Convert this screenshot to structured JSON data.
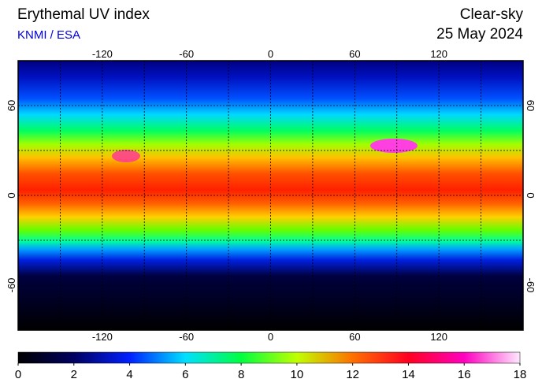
{
  "header": {
    "title": "Erythemal UV index",
    "source": "KNMI / ESA",
    "mode": "Clear-sky",
    "date": "25 May 2024"
  },
  "map": {
    "xlim": [
      -180,
      180
    ],
    "ylim": [
      -90,
      90
    ],
    "xticks": [
      -120,
      -60,
      0,
      60,
      120
    ],
    "yticks": [
      -60,
      0,
      60
    ],
    "xgrid": [
      -150,
      -120,
      -90,
      -60,
      -30,
      0,
      30,
      60,
      90,
      120,
      150
    ],
    "ygrid": [
      -60,
      -30,
      0,
      30,
      60
    ]
  },
  "colorbar": {
    "lim": [
      0,
      18
    ],
    "ticks": [
      0,
      2,
      4,
      6,
      8,
      10,
      12,
      14,
      16,
      18
    ],
    "colors": [
      "#000000",
      "#000060",
      "#0020ff",
      "#00e0ff",
      "#00ff40",
      "#c0ff00",
      "#ff7000",
      "#ff0020",
      "#ff00c0",
      "#ffe8ff"
    ]
  }
}
